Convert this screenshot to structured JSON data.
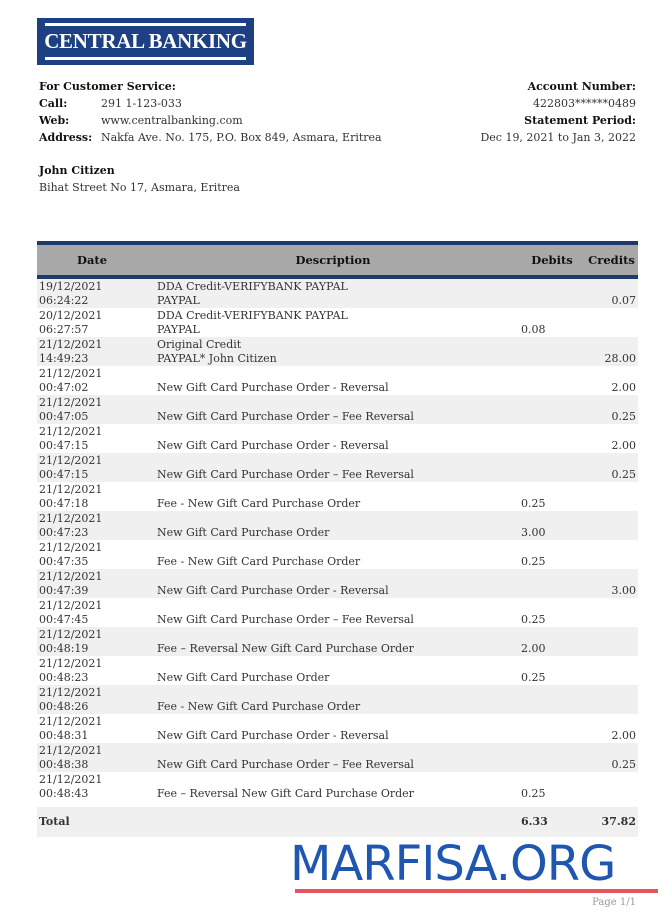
{
  "logo": {
    "text": "CENTRAL BANKING",
    "color": "#1d3f84"
  },
  "contact": {
    "heading": "For Customer Service:",
    "call_label": "Call:",
    "call": "291 1-123-033",
    "web_label": "Web:",
    "web": "www.centralbanking.com",
    "address_label": "Address:",
    "address": "Nakfa Ave. No. 175, P.O. Box 849, Asmara, Eritrea"
  },
  "account": {
    "number_label": "Account Number:",
    "number": "422803******0489",
    "period_label": "Statement Period:",
    "period": "Dec 19, 2021 to Jan 3, 2022"
  },
  "customer": {
    "name": "John Citizen",
    "address": "Bihat Street No 17, Asmara, Eritrea"
  },
  "table": {
    "headers": [
      "Date",
      "Description",
      "Debits",
      "Credits"
    ],
    "rows": [
      {
        "date": "19/12/2021",
        "time": "06:24:22",
        "desc1": "DDA Credit-VERIFYBANK PAYPAL",
        "desc2": "PAYPAL",
        "debit": "",
        "credit": "0.07"
      },
      {
        "date": "20/12/2021",
        "time": "06:27:57",
        "desc1": "DDA Credit-VERIFYBANK PAYPAL",
        "desc2": "PAYPAL",
        "debit": "0.08",
        "credit": ""
      },
      {
        "date": "21/12/2021",
        "time": "14:49:23",
        "desc1": "Original Credit",
        "desc2": "PAYPAL* John Citizen",
        "debit": "",
        "credit": "28.00"
      },
      {
        "date": "21/12/2021",
        "time": "00:47:02",
        "desc1": "",
        "desc2": "New Gift Card Purchase Order - Reversal",
        "debit": "",
        "credit": "2.00"
      },
      {
        "date": "21/12/2021",
        "time": "00:47:05",
        "desc1": "",
        "desc2": "New Gift Card Purchase Order – Fee Reversal",
        "debit": "",
        "credit": "0.25"
      },
      {
        "date": "21/12/2021",
        "time": "00:47:15",
        "desc1": "",
        "desc2": "New Gift Card Purchase Order - Reversal",
        "debit": "",
        "credit": "2.00"
      },
      {
        "date": "21/12/2021",
        "time": "00:47:15",
        "desc1": "",
        "desc2": "New Gift Card Purchase Order – Fee Reversal",
        "debit": "",
        "credit": "0.25"
      },
      {
        "date": "21/12/2021",
        "time": "00:47:18",
        "desc1": "",
        "desc2": "Fee - New Gift Card Purchase Order",
        "debit": "0.25",
        "credit": ""
      },
      {
        "date": "21/12/2021",
        "time": "00:47:23",
        "desc1": "",
        "desc2": "New Gift Card Purchase Order",
        "debit": "3.00",
        "credit": ""
      },
      {
        "date": "21/12/2021",
        "time": "00:47:35",
        "desc1": "",
        "desc2": "Fee - New Gift Card Purchase Order",
        "debit": "0.25",
        "credit": ""
      },
      {
        "date": "21/12/2021",
        "time": "00:47:39",
        "desc1": "",
        "desc2": "New Gift Card Purchase Order - Reversal",
        "debit": "",
        "credit": "3.00"
      },
      {
        "date": "21/12/2021",
        "time": "00:47:45",
        "desc1": "",
        "desc2": "New Gift Card Purchase Order – Fee Reversal",
        "debit": "0.25",
        "credit": ""
      },
      {
        "date": "21/12/2021",
        "time": "00:48:19",
        "desc1": "",
        "desc2": "Fee – Reversal New Gift Card Purchase Order",
        "debit": "2.00",
        "credit": ""
      },
      {
        "date": "21/12/2021",
        "time": "00:48:23",
        "desc1": "",
        "desc2": "New Gift Card Purchase Order",
        "debit": "0.25",
        "credit": ""
      },
      {
        "date": "21/12/2021",
        "time": "00:48:26",
        "desc1": "",
        "desc2": "Fee - New Gift Card Purchase Order",
        "debit": "",
        "credit": ""
      },
      {
        "date": "21/12/2021",
        "time": "00:48:31",
        "desc1": "",
        "desc2": "New Gift Card Purchase Order - Reversal",
        "debit": "",
        "credit": "2.00"
      },
      {
        "date": "21/12/2021",
        "time": "00:48:38",
        "desc1": "",
        "desc2": "New Gift Card Purchase Order – Fee Reversal",
        "debit": "",
        "credit": "0.25"
      },
      {
        "date": "21/12/2021",
        "time": "00:48:43",
        "desc1": "",
        "desc2": "Fee – Reversal New Gift Card Purchase Order",
        "debit": "0.25",
        "credit": ""
      }
    ],
    "total": {
      "label": "Total",
      "debit": "6.33",
      "credit": "37.82"
    }
  },
  "watermark": {
    "text": "MARFISA.ORG",
    "color": "#1e56b0",
    "underline_color": "#e8545c"
  },
  "footer": {
    "page": "Page 1/1"
  }
}
